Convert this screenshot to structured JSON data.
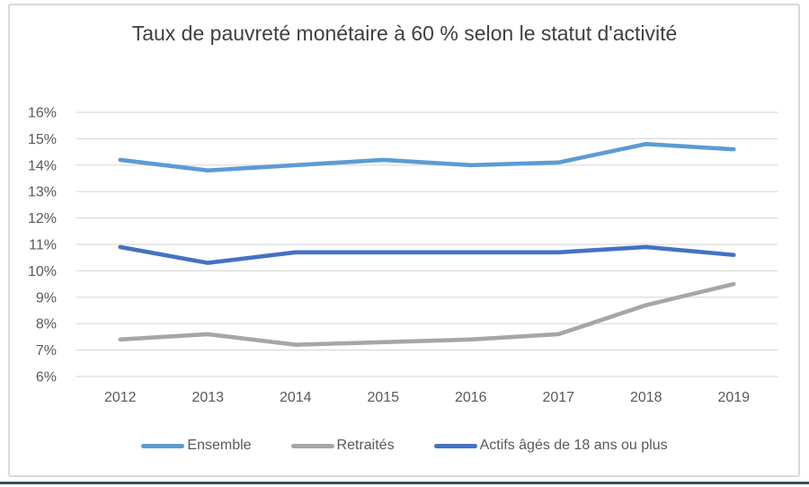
{
  "window": {
    "background": "#ffffff",
    "frame_border_color": "#d9d9d9",
    "bottom_bar_color": "#33525f"
  },
  "chart_data": {
    "type": "line",
    "title": "Taux de pauvreté monétaire à 60 % selon le statut d'activité",
    "categories": [
      "2012",
      "2013",
      "2014",
      "2015",
      "2016",
      "2017",
      "2018",
      "2019"
    ],
    "series": [
      {
        "name": "Ensemble",
        "color": "#5b9bd5",
        "values": [
          14.2,
          13.8,
          14.0,
          14.2,
          14.0,
          14.1,
          14.8,
          14.6
        ]
      },
      {
        "name": "Retraités",
        "color": "#a6a6a6",
        "values": [
          7.4,
          7.6,
          7.2,
          7.3,
          7.4,
          7.6,
          8.7,
          9.5
        ]
      },
      {
        "name": "Actifs âgés de 18 ans ou plus",
        "color": "#4472c4",
        "values": [
          10.9,
          10.3,
          10.7,
          10.7,
          10.7,
          10.7,
          10.9,
          10.6
        ]
      }
    ],
    "xlabel": "",
    "ylabel": "",
    "ylim": [
      6,
      16
    ],
    "ytick_step": 1,
    "ytick_labels": [
      "6%",
      "7%",
      "8%",
      "9%",
      "10%",
      "11%",
      "12%",
      "13%",
      "14%",
      "15%",
      "16%"
    ],
    "grid": "horizontal",
    "gridline_color": "#d9d9d9",
    "tick_color": "#595959",
    "title_color": "#3f3f3f",
    "legend_position": "bottom"
  }
}
